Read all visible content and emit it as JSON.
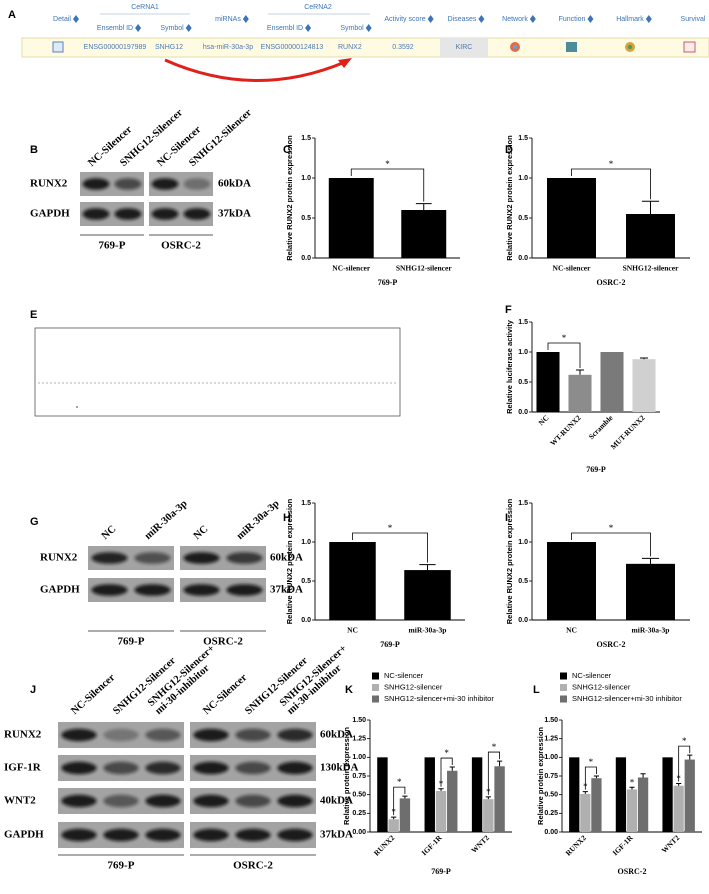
{
  "table": {
    "panel": "A",
    "headers": [
      "Detail",
      "CeRNA1",
      "miRNAs",
      "CeRNA2",
      "Activity score",
      "Diseases",
      "Network",
      "Function",
      "Hallmark",
      "Survival"
    ],
    "subheaders": [
      "Ensembl ID",
      "Symbol",
      "Ensembl ID",
      "Symbol"
    ],
    "row": [
      "ENSG00000197989",
      "SNHG12",
      "hsa-miR-30a-3p",
      "ENSG00000124813",
      "RUNX2",
      "0.3592",
      "KIRC"
    ]
  },
  "blots": [
    {
      "panel": "B",
      "lanes": [
        [
          "NC-Silencer"
        ],
        [
          "SNHG12-Silencer"
        ],
        [
          "NC-Silencer"
        ],
        [
          "SNHG12-Silencer"
        ]
      ],
      "rows": [
        {
          "protein": "RUNX2",
          "size": "60kDA"
        },
        {
          "protein": "GAPDH",
          "size": "37kDA"
        }
      ],
      "cell_lines": [
        "769-P",
        "OSRC-2"
      ]
    },
    {
      "panel": "G",
      "lanes": [
        [
          "NC"
        ],
        [
          "miR-30a-3p"
        ],
        [
          "NC"
        ],
        [
          "miR-30a-3p"
        ]
      ],
      "rows": [
        {
          "protein": "RUNX2",
          "size": "60kDA"
        },
        {
          "protein": "GAPDH",
          "size": "37kDA"
        }
      ],
      "cell_lines": [
        "769-P",
        "OSRC-2"
      ]
    },
    {
      "panel": "J",
      "lanes": [
        [
          "NC-Silencer"
        ],
        [
          "SNHG12-Silencer"
        ],
        [
          "SNHG12-Silencer+",
          "mi-30-inhibitor"
        ],
        [
          "NC-Silencer"
        ],
        [
          "SNHG12-Silencer"
        ],
        [
          "SNHG12-Silencer+",
          "mi-30-inhibitor"
        ]
      ],
      "rows": [
        {
          "protein": "RUNX2",
          "size": "60kDA"
        },
        {
          "protein": "IGF-1R",
          "size": "130kDA"
        },
        {
          "protein": "WNT2",
          "size": "40kDA"
        },
        {
          "protein": "GAPDH",
          "size": "37kDA"
        }
      ],
      "cell_lines": [
        "769-P",
        "OSRC-2"
      ]
    }
  ],
  "panel_e": {
    "label": "E"
  },
  "chart_data": [
    {
      "type": "bar",
      "panel": "C",
      "categories": [
        "NC-silencer",
        "SNHG12-silencer"
      ],
      "values": [
        1,
        0.6
      ],
      "errors": [
        null,
        0.08
      ],
      "colors": [
        "#000000",
        "#000000"
      ],
      "ylim": [
        0,
        1.5
      ],
      "yticks": [
        {
          "value": 0,
          "label": "0.0"
        },
        0.5,
        {
          "value": 1,
          "label": "1.0"
        },
        1.5
      ],
      "y_label": "Relative RUNX2 protein expression",
      "x_label": "769-P",
      "annotations": [
        {
          "text": "*",
          "between": [
            0,
            1
          ]
        }
      ]
    },
    {
      "type": "bar",
      "panel": "D",
      "categories": [
        "NC-silencer",
        "SNHG12-silencer"
      ],
      "values": [
        1,
        0.55
      ],
      "errors": [
        null,
        0.16
      ],
      "colors": [
        "#000000",
        "#000000"
      ],
      "ylim": [
        0,
        1.5
      ],
      "yticks": [
        {
          "value": 0,
          "label": "0.0"
        },
        0.5,
        {
          "value": 1,
          "label": "1.0"
        },
        1.5
      ],
      "y_label": "Relative RUNX2 protein expression",
      "x_label": "OSRC-2",
      "annotations": [
        {
          "text": "*",
          "between": [
            0,
            1
          ]
        }
      ]
    },
    {
      "type": "bar",
      "panel": "F",
      "categories": [
        "NC",
        "WT-RUNX2",
        "Scramble",
        "MUT-RUNX2"
      ],
      "values": [
        1,
        0.62,
        1,
        0.88
      ],
      "errors": [
        null,
        0.08,
        null,
        0.02
      ],
      "colors": [
        "#000000",
        "#8c8c8c",
        "#7a7a7a",
        "#d0d0d0"
      ],
      "ylim": [
        0,
        1.5
      ],
      "yticks": [
        {
          "value": 0,
          "label": "0.0"
        },
        0.5,
        {
          "value": 1,
          "label": "1.0"
        },
        1.5
      ],
      "y_label": "Relative luciferase activity",
      "x_label": "769-P",
      "annotations": [
        {
          "text": "*",
          "between": [
            0,
            1
          ]
        }
      ]
    },
    {
      "type": "bar",
      "panel": "H",
      "categories": [
        "NC",
        "miR-30a-3p"
      ],
      "values": [
        1,
        0.64
      ],
      "errors": [
        null,
        0.07
      ],
      "colors": [
        "#000000",
        "#000000"
      ],
      "ylim": [
        0,
        1.5
      ],
      "yticks": [
        {
          "value": 0,
          "label": "0.0"
        },
        0.5,
        {
          "value": 1,
          "label": "1.0"
        },
        1.5
      ],
      "y_label": "Relative RUNX2 protein expression",
      "x_label": "769-P",
      "annotations": [
        {
          "text": "*",
          "between": [
            0,
            1
          ]
        }
      ]
    },
    {
      "type": "bar",
      "panel": "I",
      "categories": [
        "NC",
        "miR-30a-3p"
      ],
      "values": [
        1,
        0.72
      ],
      "errors": [
        null,
        0.07
      ],
      "colors": [
        "#000000",
        "#000000"
      ],
      "ylim": [
        0,
        1.5
      ],
      "yticks": [
        {
          "value": 0,
          "label": "0.0"
        },
        0.5,
        {
          "value": 1,
          "label": "1.0"
        },
        1.5
      ],
      "y_label": "Relative RUNX2 protein expression",
      "x_label": "OSRC-2",
      "annotations": [
        {
          "text": "*",
          "between": [
            0,
            1
          ]
        }
      ]
    },
    {
      "type": "bar",
      "panel": "K",
      "categories": [
        "RUNX2",
        "IGF-1R",
        "WNT2"
      ],
      "series": [
        {
          "name": "NC-silencer",
          "color": "#000000",
          "values": [
            1,
            1,
            1
          ],
          "errors": [
            null,
            null,
            null
          ]
        },
        {
          "name": "SNHG12-silencer",
          "color": "#b0b0b0",
          "values": [
            0.17,
            0.55,
            0.44
          ],
          "errors": [
            0.03,
            0.03,
            0.03
          ]
        },
        {
          "name": "SNHG12-silencer+mi-30 inhibitor",
          "color": "#6e6e6e",
          "values": [
            0.45,
            0.82,
            0.88
          ],
          "errors": [
            0.03,
            0.05,
            0.07
          ]
        }
      ],
      "ylim": [
        0,
        1.5
      ],
      "yticks": [
        {
          "value": 0,
          "label": "0.00"
        },
        0.25,
        {
          "value": 0.5,
          "label": "0.50"
        },
        0.75,
        {
          "value": 1,
          "label": "1.00"
        },
        1.25,
        {
          "value": 1.5,
          "label": "1.50"
        }
      ],
      "y_label": "Relative protein expression",
      "x_label": "769-P",
      "annotations": [
        {
          "text": "*",
          "group": 0,
          "series": 1
        },
        {
          "text": "*",
          "group": 0,
          "between": [
            1,
            2
          ]
        },
        {
          "text": "*",
          "group": 1,
          "series": 1
        },
        {
          "text": "*",
          "group": 1,
          "between": [
            1,
            2
          ]
        },
        {
          "text": "*",
          "group": 2,
          "series": 1
        },
        {
          "text": "*",
          "group": 2,
          "between": [
            1,
            2
          ]
        }
      ]
    },
    {
      "type": "bar",
      "panel": "L",
      "categories": [
        "RUNX2",
        "IGF-1R",
        "WNT2"
      ],
      "series": [
        {
          "name": "NC-silencer",
          "color": "#000000",
          "values": [
            1,
            1,
            1
          ],
          "errors": [
            null,
            null,
            null
          ]
        },
        {
          "name": "SNHG12-silencer",
          "color": "#b0b0b0",
          "values": [
            0.51,
            0.57,
            0.62
          ],
          "errors": [
            0.03,
            0.03,
            0.03
          ]
        },
        {
          "name": "SNHG12-silencer+mi-30 inhibitor",
          "color": "#6e6e6e",
          "values": [
            0.72,
            0.73,
            0.97
          ],
          "errors": [
            0.03,
            0.05,
            0.06
          ]
        }
      ],
      "ylim": [
        0,
        1.5
      ],
      "yticks": [
        {
          "value": 0,
          "label": "0.00"
        },
        0.25,
        {
          "value": 0.5,
          "label": "0.50"
        },
        0.75,
        {
          "value": 1,
          "label": "1.00"
        },
        1.25,
        {
          "value": 1.5,
          "label": "1.50"
        }
      ],
      "y_label": "Relative protein expression",
      "x_label": "OSRC-2",
      "annotations": [
        {
          "text": "*",
          "group": 0,
          "series": 1
        },
        {
          "text": "*",
          "group": 0,
          "between": [
            1,
            2
          ]
        },
        {
          "text": "*",
          "group": 1,
          "series": 1
        },
        {
          "text": "*",
          "group": 2,
          "series": 1
        },
        {
          "text": "*",
          "group": 2,
          "between": [
            1,
            2
          ]
        }
      ]
    }
  ]
}
